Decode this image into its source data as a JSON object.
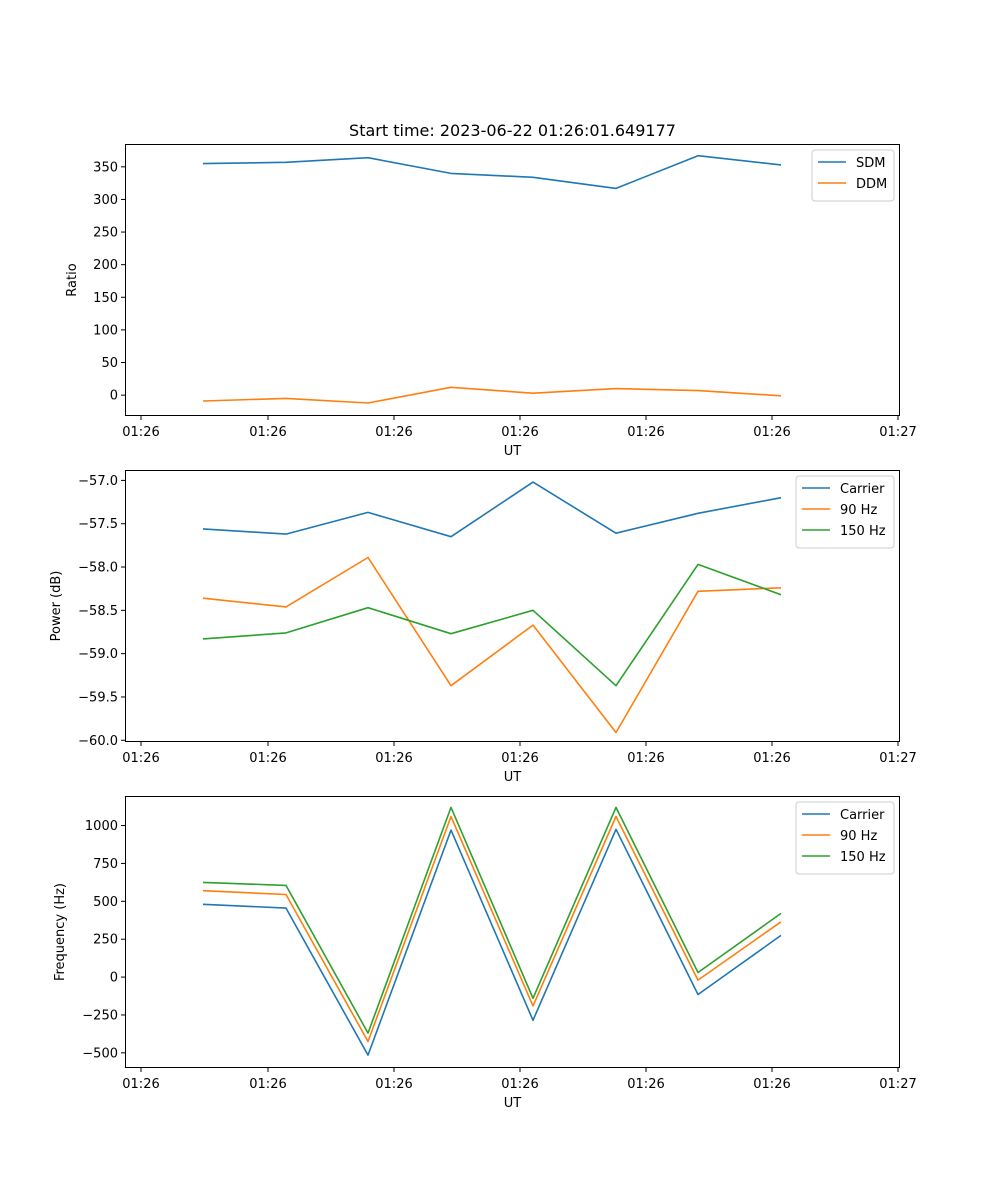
{
  "chart_data": [
    {
      "type": "line",
      "title": "Start time: 2023-06-22 01:26:01.649177",
      "xlabel": "UT",
      "ylabel": "Ratio",
      "x_tick_labels": [
        "01:26",
        "01:26",
        "01:26",
        "01:26",
        "01:26",
        "01:26",
        "01:27"
      ],
      "y_ticks": [
        0,
        50,
        100,
        150,
        200,
        250,
        300,
        350
      ],
      "y_tick_labels": [
        "0",
        "50",
        "100",
        "150",
        "200",
        "250",
        "300",
        "350"
      ],
      "ylim": [
        -32,
        385
      ],
      "legend_position": "upper-right",
      "series": [
        {
          "name": "SDM",
          "color": "#1f77b4",
          "values": [
            355,
            357,
            364,
            340,
            334,
            317,
            367,
            353
          ]
        },
        {
          "name": "DDM",
          "color": "#ff7f0e",
          "values": [
            -9,
            -5,
            -12,
            12,
            3,
            10,
            7,
            -1
          ]
        }
      ]
    },
    {
      "type": "line",
      "title": "",
      "xlabel": "UT",
      "ylabel": "Power (dB)",
      "x_tick_labels": [
        "01:26",
        "01:26",
        "01:26",
        "01:26",
        "01:26",
        "01:26",
        "01:27"
      ],
      "y_ticks": [
        -60.0,
        -59.5,
        -59.0,
        -58.5,
        -58.0,
        -57.5,
        -57.0
      ],
      "y_tick_labels": [
        "−60.0",
        "−59.5",
        "−59.0",
        "−58.5",
        "−58.0",
        "−57.5",
        "−57.0"
      ],
      "ylim": [
        -60.02,
        -56.88
      ],
      "legend_position": "upper-right",
      "series": [
        {
          "name": "Carrier",
          "color": "#1f77b4",
          "values": [
            -57.56,
            -57.62,
            -57.37,
            -57.65,
            -57.02,
            -57.61,
            -57.38,
            -57.2
          ]
        },
        {
          "name": "90 Hz",
          "color": "#ff7f0e",
          "values": [
            -58.36,
            -58.46,
            -57.89,
            -59.37,
            -58.67,
            -59.91,
            -58.28,
            -58.24
          ]
        },
        {
          "name": "150 Hz",
          "color": "#2ca02c",
          "values": [
            -58.83,
            -58.76,
            -58.47,
            -58.77,
            -58.5,
            -59.37,
            -57.97,
            -58.32
          ]
        }
      ]
    },
    {
      "type": "line",
      "title": "",
      "xlabel": "UT",
      "ylabel": "Frequency (Hz)",
      "x_tick_labels": [
        "01:26",
        "01:26",
        "01:26",
        "01:26",
        "01:26",
        "01:26",
        "01:27"
      ],
      "y_ticks": [
        -500,
        -250,
        0,
        250,
        500,
        750,
        1000
      ],
      "y_tick_labels": [
        "−500",
        "−250",
        "0",
        "250",
        "500",
        "750",
        "1000"
      ],
      "ylim": [
        -600,
        1195
      ],
      "legend_position": "upper-right",
      "series": [
        {
          "name": "Carrier",
          "color": "#1f77b4",
          "values": [
            480,
            455,
            -515,
            970,
            -285,
            975,
            -115,
            275
          ]
        },
        {
          "name": "90 Hz",
          "color": "#ff7f0e",
          "values": [
            570,
            545,
            -425,
            1060,
            -190,
            1060,
            -20,
            365
          ]
        },
        {
          "name": "150 Hz",
          "color": "#2ca02c",
          "values": [
            625,
            605,
            -370,
            1120,
            -140,
            1120,
            30,
            420
          ]
        }
      ]
    }
  ]
}
